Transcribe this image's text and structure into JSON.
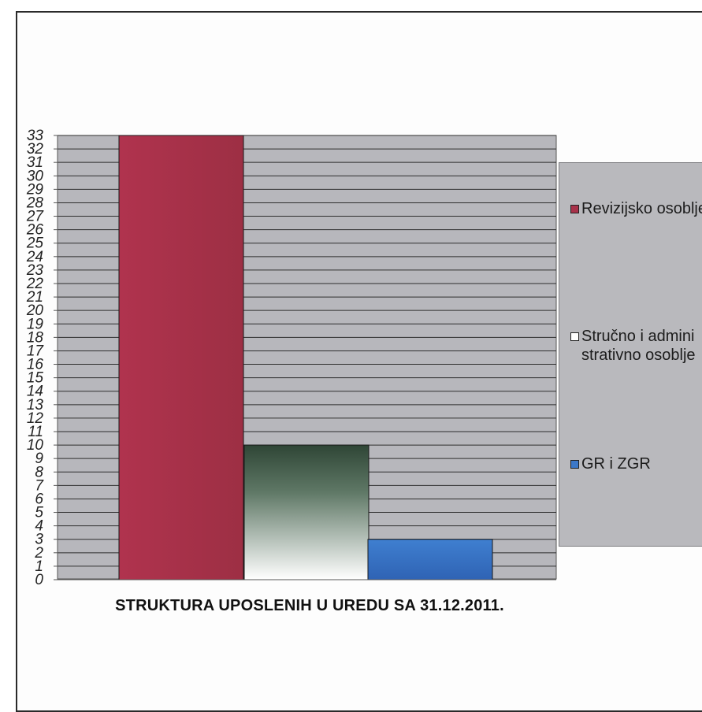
{
  "chart_data": {
    "type": "bar",
    "title": "STRUKTURA UPOSLENIH U UREDU SA 31.12.2011.",
    "categories": [
      "Revizijsko osoblje",
      "Stručno i administrativno osoblje",
      "GR i ZGR"
    ],
    "values": [
      33,
      10,
      3
    ],
    "ylim": [
      0,
      33
    ],
    "y_ticks": [
      "0",
      "1",
      "2",
      "3",
      "4",
      "5",
      "6",
      "7",
      "8",
      "9",
      "10",
      "11",
      "12",
      "13",
      "14",
      "15",
      "16",
      "17",
      "18",
      "19",
      "20",
      "21",
      "22",
      "23",
      "24",
      "25",
      "26",
      "27",
      "28",
      "29",
      "30",
      "31",
      "32",
      "33"
    ],
    "grid": true,
    "legend": {
      "placement": "right",
      "entries": [
        {
          "label": "Revizijsko osoblje",
          "color": "#a8324a"
        },
        {
          "label": "Stručno i administrativno osoblje",
          "color": "#3f5a48"
        },
        {
          "label": "GR i ZGR",
          "color": "#3c78c8"
        }
      ]
    },
    "colors": {
      "plot_background": "#b7b7bc",
      "gridline": "#2e2e2e",
      "bar_1": "#a8324a",
      "bar_2_top": "#2f4636",
      "bar_2_bottom": "#ffffff",
      "bar_3": "#3c78c8"
    }
  }
}
